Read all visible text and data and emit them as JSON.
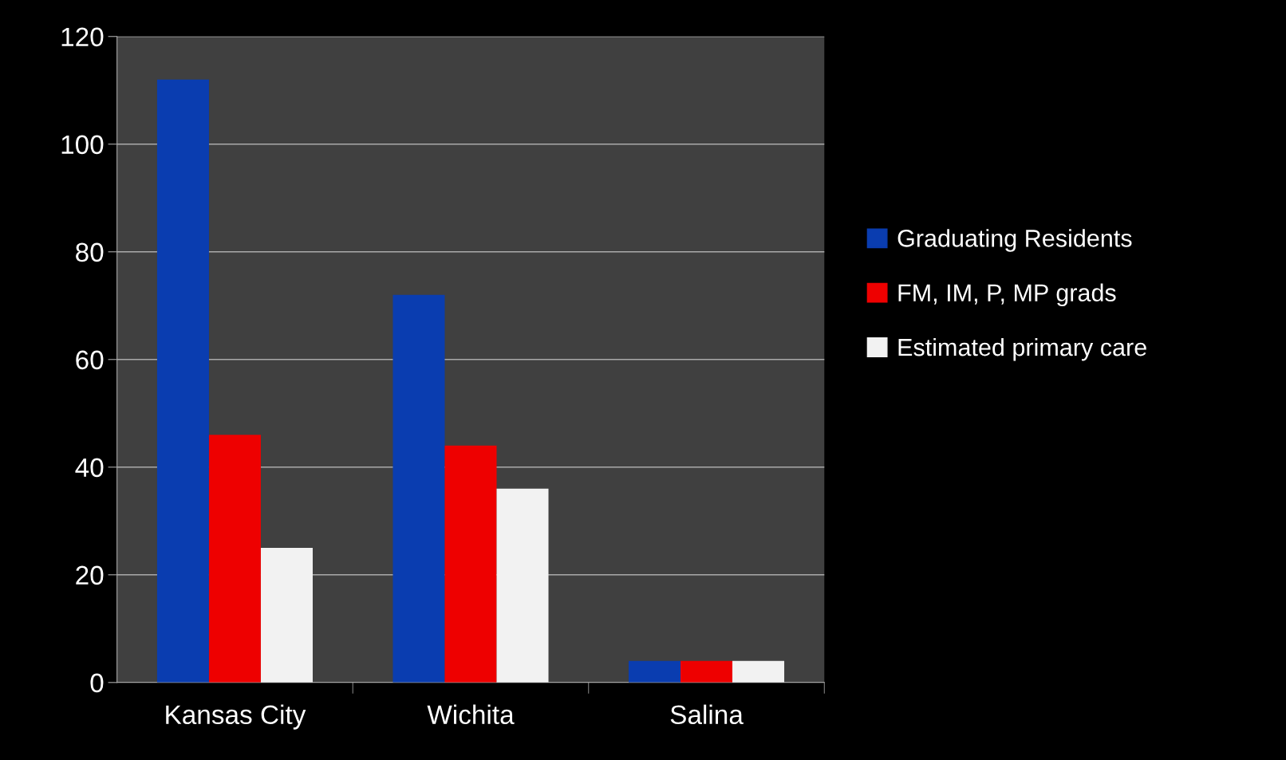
{
  "chart_data": {
    "type": "bar",
    "categories": [
      "Kansas City",
      "Wichita",
      "Salina"
    ],
    "series": [
      {
        "name": "Graduating Residents",
        "color": "#0a3db0",
        "values": [
          112,
          72,
          4
        ]
      },
      {
        "name": "FM, IM, P, MP grads",
        "color": "#ee0000",
        "values": [
          46,
          44,
          4
        ]
      },
      {
        "name": "Estimated primary care",
        "color": "#f2f2f2",
        "values": [
          25,
          36,
          4
        ]
      }
    ],
    "ylim": [
      0,
      120
    ],
    "yticks": [
      0,
      20,
      40,
      60,
      80,
      100,
      120
    ],
    "grid": "y",
    "legend": "right"
  }
}
